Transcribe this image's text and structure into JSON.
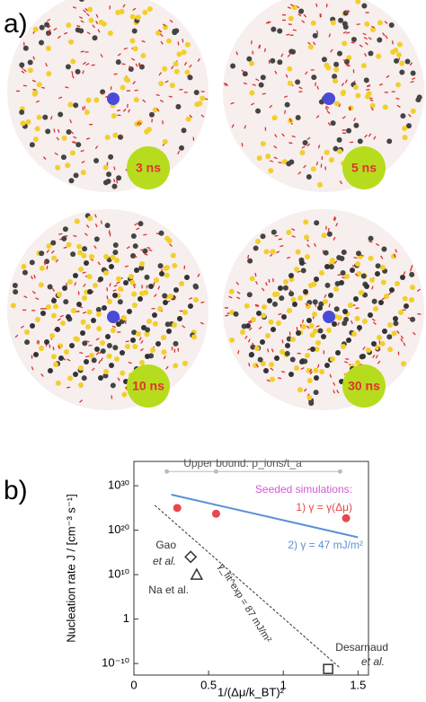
{
  "panel_a": {
    "label": "a)",
    "snapshots": [
      "3 ns",
      "5 ns",
      "10 ns",
      "30 ns"
    ]
  },
  "chart_data": {
    "type": "scatter",
    "panel_label": "b)",
    "x_label": "1/(Δμ/k_BT)²",
    "y_label": "Nucleation rate J / [cm⁻³ s⁻¹]",
    "xlim": [
      0,
      1.57
    ],
    "xticks": [
      0,
      0.5,
      1,
      1.5
    ],
    "ylim": [
      2.5e-13,
      3e+35
    ],
    "log_y": true,
    "yticks": [
      {
        "value": 1e+30,
        "label": "10³⁰"
      },
      {
        "value": 1e+20,
        "label": "10²⁰"
      },
      {
        "value": 10000000000.0,
        "label": "10¹⁰"
      },
      1,
      {
        "value": 1e-10,
        "label": "10⁻¹⁰"
      }
    ],
    "series": [
      {
        "color": "#bbbbbb",
        "marker": "dot-line",
        "x": [
          0.22,
          0.55,
          1.38
        ],
        "values": [
          1.6e+33,
          1.6e+33,
          1.6e+33
        ]
      },
      {
        "color": "#e8474e",
        "marker": "dot",
        "x": [
          0.29,
          0.55,
          1.42
        ],
        "values": [
          1e+25,
          5e+23,
          5e+22
        ]
      },
      {
        "color": "#5b8fd6",
        "marker": "line",
        "x": [
          0.25,
          1.5
        ],
        "values": [
          1e+28,
          2.5e+18
        ]
      },
      {
        "color": "#333333",
        "marker": "dashed",
        "x": [
          0.14,
          1.38
        ],
        "values": [
          4e+25,
          1e-11
        ]
      },
      {
        "color": "#333333",
        "marker": "diamond",
        "x": [
          0.38
        ],
        "values": [
          100000000000000.0
        ]
      },
      {
        "color": "#333333",
        "marker": "triangle",
        "x": [
          0.42
        ],
        "values": [
          10000000000.0
        ]
      },
      {
        "color": "#333333",
        "marker": "square",
        "x": [
          1.3
        ],
        "values": [
          6e-12
        ]
      }
    ],
    "annotations": [
      "Upper bound: ρ_ions/t_a",
      "Seeded simulations:",
      "1) γ = γ(Δμ)",
      "2) γ = 47 mJ/m²",
      "Gao",
      "et al.",
      "Na et al.",
      "Desarnaud",
      "et al.",
      "γ_fit^exp = 87 mJ/m²"
    ]
  }
}
